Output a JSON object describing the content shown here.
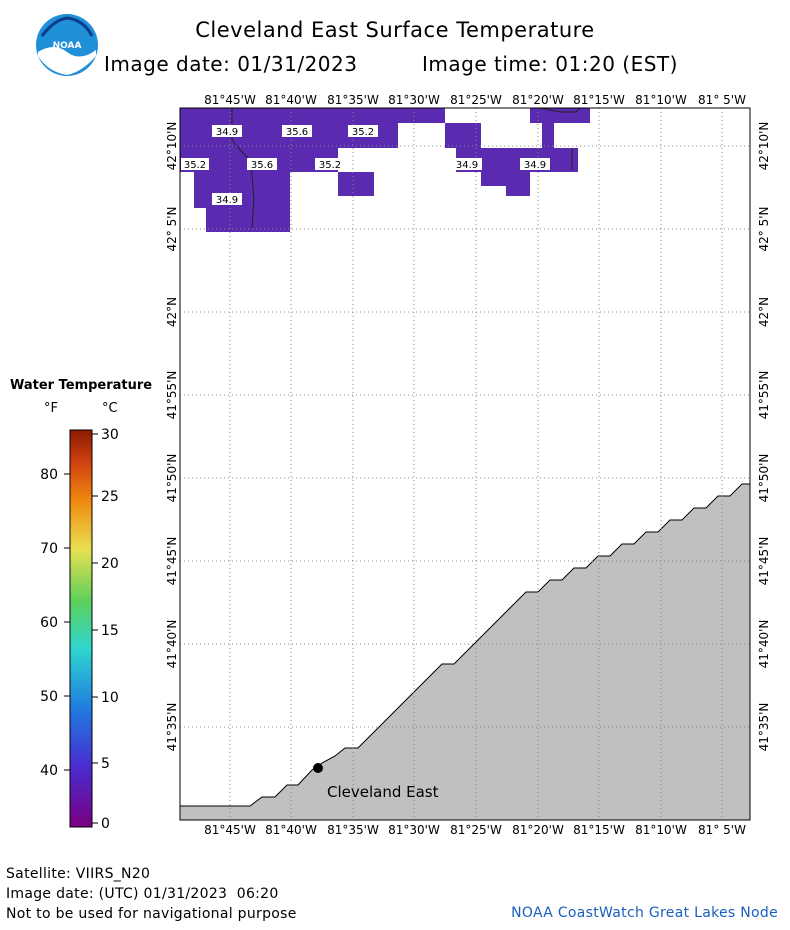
{
  "header": {
    "title": "Cleveland East Surface Temperature",
    "image_date": "Image date: 01/31/2023",
    "image_time": "Image time: 01:20 (EST)"
  },
  "logo": {
    "text": "NOAA"
  },
  "legend": {
    "title": "Water Temperature",
    "unit_f": "°F",
    "unit_c": "°C",
    "f_ticks": [
      "80",
      "70",
      "60",
      "50",
      "40"
    ],
    "c_ticks": [
      "30",
      "25",
      "20",
      "15",
      "10",
      "5",
      "0"
    ]
  },
  "map": {
    "lon_labels": [
      "81°45'W",
      "81°40'W",
      "81°35'W",
      "81°30'W",
      "81°25'W",
      "81°20'W",
      "81°15'W",
      "81°10'W",
      "81° 5'W"
    ],
    "lat_labels": [
      "42°10'N",
      "42° 5'N",
      "42°N",
      "41°55'N",
      "41°50'N",
      "41°45'N",
      "41°40'N",
      "41°35'N"
    ],
    "temp_labels": [
      "34.9",
      "35.6",
      "35.2",
      "35.2",
      "35.6",
      "35.2",
      "34.9",
      "34.9",
      "34.9"
    ],
    "station_label": "Cleveland East",
    "water_color": "#5a2bb0",
    "land_color": "#c0c0c0"
  },
  "footer": {
    "satellite": "Satellite: VIIRS_N20",
    "utc_date": "Image date: (UTC) 01/31/2023  06:20",
    "disclaimer": "Not to be used for navigational purpose",
    "credit": "NOAA CoastWatch Great Lakes Node"
  }
}
